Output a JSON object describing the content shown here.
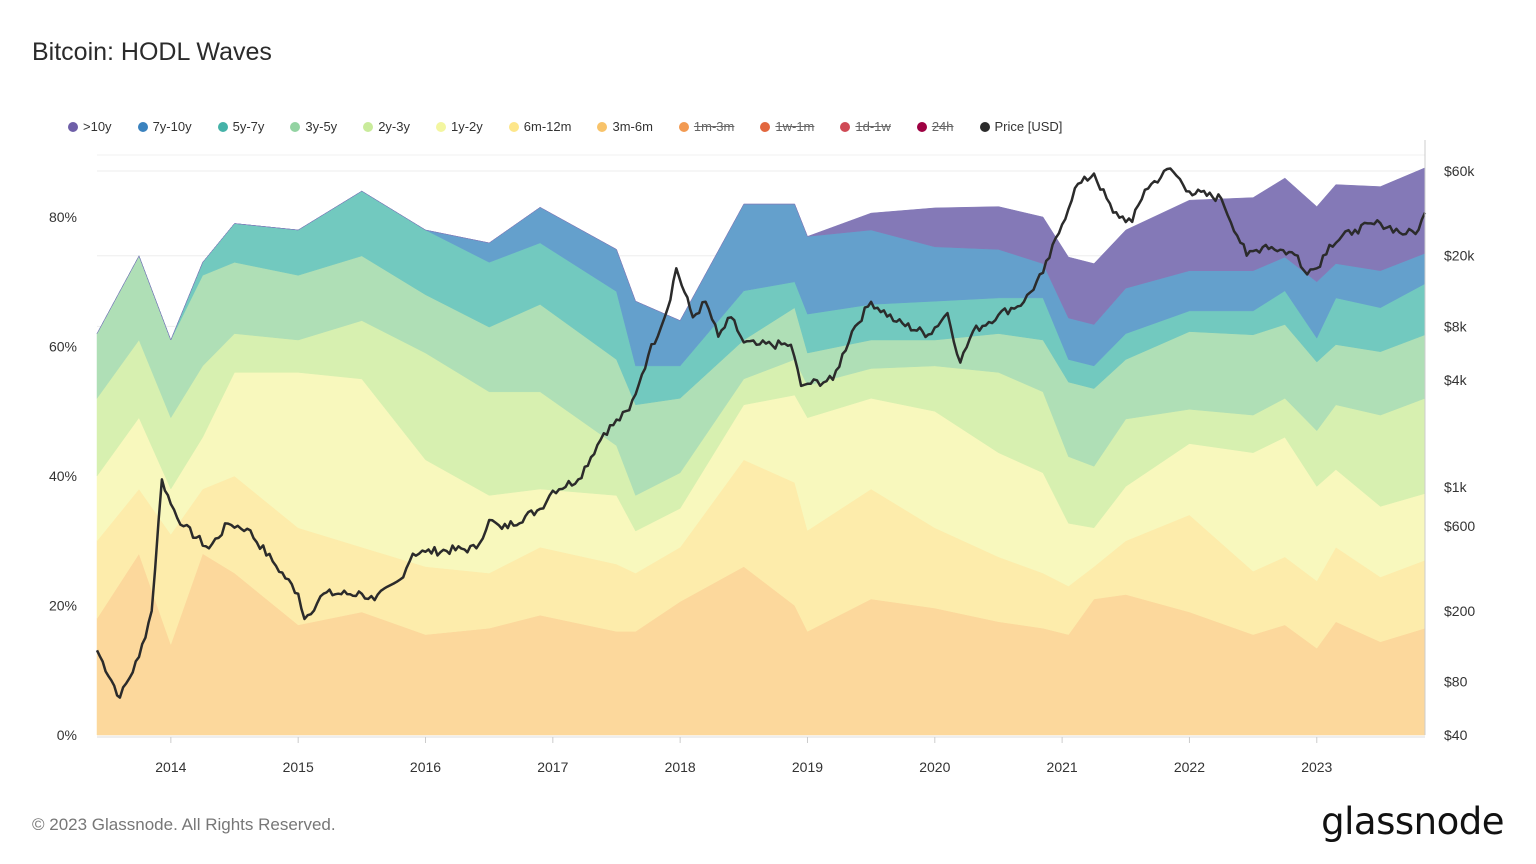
{
  "header": {
    "title": "Bitcoin: HODL Waves"
  },
  "legend": [
    {
      "label": ">10y",
      "color": "#6e5fa8",
      "hidden": false
    },
    {
      "label": "7y-10y",
      "color": "#3a82be",
      "hidden": false
    },
    {
      "label": "5y-7y",
      "color": "#45b2a8",
      "hidden": false
    },
    {
      "label": "3y-5y",
      "color": "#93d3a2",
      "hidden": false
    },
    {
      "label": "2y-3y",
      "color": "#c9eb9b",
      "hidden": false
    },
    {
      "label": "1y-2y",
      "color": "#f3f6a0",
      "hidden": false
    },
    {
      "label": "6m-12m",
      "color": "#fde68a",
      "hidden": false
    },
    {
      "label": "3m-6m",
      "color": "#f8c36a",
      "hidden": false
    },
    {
      "label": "1m-3m",
      "color": "#f29a52",
      "hidden": true
    },
    {
      "label": "1w-1m",
      "color": "#e2673f",
      "hidden": true
    },
    {
      "label": "1d-1w",
      "color": "#cf4a55",
      "hidden": true
    },
    {
      "label": "24h",
      "color": "#9e0142",
      "hidden": true
    },
    {
      "label": "Price [USD]",
      "color": "#2b2b2b",
      "hidden": false
    }
  ],
  "chart_data": {
    "type": "area",
    "stacked": true,
    "title": "Bitcoin: HODL Waves",
    "y_left": {
      "ticks": [
        "0%",
        "20%",
        "40%",
        "60%",
        "80%"
      ],
      "range": [
        0,
        88
      ],
      "unit": "%"
    },
    "y_right": {
      "scale": "log",
      "ticks": [
        "$40",
        "$80",
        "$200",
        "$600",
        "$1k",
        "$4k",
        "$8k",
        "$20k",
        "$60k"
      ],
      "tick_values": [
        40,
        80,
        200,
        600,
        1000,
        4000,
        8000,
        20000,
        60000
      ],
      "range": [
        40,
        60000
      ]
    },
    "x": {
      "ticks": [
        "2014",
        "2015",
        "2016",
        "2017",
        "2018",
        "2019",
        "2020",
        "2021",
        "2022",
        "2023"
      ],
      "range": [
        2013.42,
        2023.85
      ]
    },
    "grid": true,
    "legend_position": "top",
    "dates": [
      2013.42,
      2013.75,
      2014.0,
      2014.25,
      2014.5,
      2015.0,
      2015.5,
      2016.0,
      2016.5,
      2016.9,
      2017.5,
      2017.65,
      2018.0,
      2018.5,
      2018.9,
      2019.0,
      2019.5,
      2020.0,
      2020.5,
      2020.85,
      2021.05,
      2021.25,
      2021.5,
      2022.0,
      2022.5,
      2022.75,
      2023.0,
      2023.15,
      2023.5,
      2023.85
    ],
    "series": [
      {
        "name": "3m-6m",
        "color": "#fcd89c",
        "values": [
          18,
          28,
          14,
          28,
          25,
          17,
          19,
          15.5,
          16.5,
          18.5,
          16,
          16,
          20.6,
          26,
          20,
          16,
          21,
          19.6,
          17.5,
          16.5,
          15.5,
          21,
          21.7,
          19,
          15.5,
          17,
          13.4,
          17.5,
          14.4,
          16.5
        ]
      },
      {
        "name": "6m-12m",
        "color": "#fdecab",
        "values": [
          12,
          10,
          17,
          10,
          15,
          15,
          10,
          10.5,
          8.5,
          10.5,
          10.4,
          9,
          8.4,
          16.5,
          19,
          15.6,
          17,
          12.4,
          10,
          8.5,
          7.5,
          5,
          8.3,
          15,
          9.8,
          10.5,
          10.4,
          11.5,
          10,
          10.5
        ]
      },
      {
        "name": "1y-2y",
        "color": "#f8f8bd",
        "values": [
          10,
          11,
          7,
          8,
          16,
          24,
          26,
          16.5,
          12,
          9,
          10.6,
          6.5,
          6,
          8.5,
          13.5,
          17.4,
          14,
          18,
          16.1,
          15.5,
          9.7,
          6,
          8.4,
          11,
          18.3,
          18.5,
          14.6,
          12,
          10.9,
          10.3
        ]
      },
      {
        "name": "2y-3y",
        "color": "#d7f0b0",
        "values": [
          12,
          12,
          11,
          11,
          6,
          5,
          9,
          16.5,
          16,
          15,
          7.7,
          5.5,
          5.5,
          4,
          5.5,
          5,
          4.6,
          7,
          12.4,
          12.5,
          10.3,
          9.5,
          10.4,
          5.3,
          5.8,
          6,
          8.6,
          10,
          14.1,
          14.7
        ]
      },
      {
        "name": "3y-5y",
        "color": "#afdfb6",
        "values": [
          10,
          13,
          12,
          14,
          11,
          10,
          10,
          9,
          10,
          13.5,
          13.3,
          14,
          11.5,
          6,
          8,
          5,
          4.4,
          4,
          6,
          8,
          11.5,
          12,
          9.2,
          12,
          12.4,
          11.4,
          10.6,
          9.3,
          9.8,
          9.8
        ]
      },
      {
        "name": "5y-7y",
        "color": "#72c9bf",
        "values": [
          0,
          0,
          0,
          2,
          6,
          7,
          10,
          10,
          10,
          9.5,
          10.5,
          6,
          5,
          7.6,
          4,
          6,
          5.5,
          6,
          5.5,
          6.5,
          3.5,
          3.5,
          4,
          3.2,
          3.7,
          5.2,
          3.7,
          7.2,
          6.8,
          7.9
        ]
      },
      {
        "name": "7y-10y",
        "color": "#64a0cc",
        "values": [
          0,
          0,
          0,
          0,
          0,
          0,
          0,
          0,
          3,
          5.5,
          6.5,
          10,
          7,
          13.4,
          12,
          12,
          11.5,
          8.4,
          7.5,
          5.3,
          6.4,
          6.4,
          7,
          6.2,
          6.2,
          5.2,
          8.7,
          5.3,
          5.7,
          4.7
        ]
      },
      {
        "name": ">10y",
        "color": "#8479b7",
        "values": [
          0,
          0,
          0,
          0,
          0,
          0,
          0,
          0,
          0,
          0,
          0,
          0,
          0,
          0,
          0,
          0,
          2.6,
          6,
          6.6,
          7.2,
          9.4,
          9.4,
          9,
          10.9,
          11.3,
          12.2,
          11.6,
          12.2,
          13,
          13.2
        ]
      }
    ],
    "price": {
      "name": "Price [USD]",
      "color": "#2b2b2b",
      "dates": [
        2013.42,
        2013.6,
        2013.75,
        2013.85,
        2013.93,
        2014.0,
        2014.1,
        2014.3,
        2014.45,
        2014.6,
        2014.8,
        2015.0,
        2015.05,
        2015.2,
        2015.5,
        2015.6,
        2015.8,
        2015.9,
        2016.0,
        2016.4,
        2016.5,
        2016.6,
        2016.9,
        2017.0,
        2017.2,
        2017.4,
        2017.6,
        2017.7,
        2017.75,
        2017.9,
        2017.97,
        2018.1,
        2018.2,
        2018.3,
        2018.4,
        2018.5,
        2018.6,
        2018.87,
        2018.95,
        2019.0,
        2019.2,
        2019.35,
        2019.5,
        2019.7,
        2019.95,
        2020.1,
        2020.2,
        2020.3,
        2020.5,
        2020.7,
        2020.85,
        2021.0,
        2021.1,
        2021.25,
        2021.4,
        2021.55,
        2021.65,
        2021.85,
        2022.0,
        2022.25,
        2022.45,
        2022.6,
        2022.85,
        2022.9,
        2023.0,
        2023.1,
        2023.3,
        2023.5,
        2023.7,
        2023.8,
        2023.85
      ],
      "values": [
        120,
        65,
        110,
        200,
        1100,
        800,
        600,
        450,
        620,
        580,
        380,
        250,
        180,
        250,
        250,
        230,
        300,
        420,
        430,
        450,
        650,
        580,
        750,
        950,
        1100,
        2000,
        2700,
        4300,
        5500,
        10000,
        17000,
        9000,
        11000,
        7000,
        9000,
        6500,
        6300,
        6300,
        3700,
        3800,
        4000,
        7500,
        11000,
        8500,
        7200,
        9500,
        5000,
        7500,
        9300,
        11000,
        16000,
        30000,
        48000,
        58000,
        35000,
        31000,
        47000,
        62000,
        46000,
        42000,
        20000,
        23000,
        20000,
        16500,
        17000,
        23000,
        28000,
        30500,
        26500,
        28000,
        35000
      ]
    }
  },
  "footer": {
    "copyright": "© 2023 Glassnode. All Rights Reserved.",
    "logo": "glassnode"
  }
}
